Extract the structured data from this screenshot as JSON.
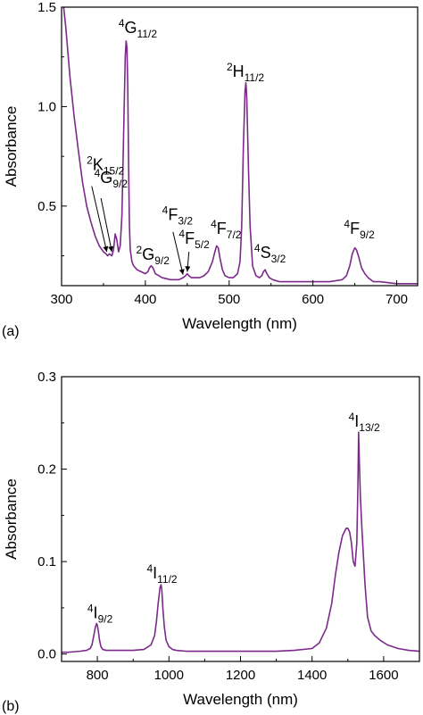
{
  "chart_data": [
    {
      "type": "line",
      "panel_label": "(a)",
      "xlabel": "Wavelength (nm)",
      "ylabel": "Absorbance",
      "xlim": [
        300,
        725
      ],
      "ylim": [
        0.1,
        1.5
      ],
      "xticks": [
        300,
        400,
        500,
        600,
        700
      ],
      "yticks": [
        0.5,
        1.0,
        1.5
      ],
      "ytick_labels": [
        "0.5",
        "1.0",
        "1.5"
      ],
      "grid": false,
      "line_color": "#7b2a8a",
      "series": [
        {
          "x": [
            300,
            305,
            310,
            315,
            320,
            325,
            330,
            335,
            340,
            345,
            350,
            353,
            355,
            357,
            360,
            362,
            364,
            366,
            368,
            370,
            372,
            374,
            376,
            377,
            378,
            379,
            380,
            381,
            382,
            384,
            386,
            390,
            395,
            400,
            403,
            405,
            407,
            409,
            412,
            416,
            420,
            430,
            440,
            445,
            448,
            450,
            452,
            455,
            460,
            465,
            470,
            475,
            480,
            483,
            485,
            487,
            489,
            492,
            495,
            500,
            505,
            510,
            513,
            515,
            517,
            519,
            520,
            521,
            523,
            525,
            528,
            532,
            536,
            539,
            541,
            543,
            545,
            548,
            552,
            560,
            580,
            600,
            620,
            635,
            640,
            644,
            647,
            650,
            652,
            655,
            658,
            662,
            666,
            672,
            680,
            700,
            725
          ],
          "y": [
            1.6,
            1.4,
            1.15,
            0.95,
            0.78,
            0.62,
            0.5,
            0.42,
            0.35,
            0.3,
            0.27,
            0.26,
            0.25,
            0.26,
            0.25,
            0.28,
            0.36,
            0.33,
            0.27,
            0.3,
            0.45,
            0.85,
            1.25,
            1.33,
            1.3,
            1.1,
            0.7,
            0.4,
            0.28,
            0.22,
            0.2,
            0.18,
            0.17,
            0.16,
            0.17,
            0.19,
            0.2,
            0.19,
            0.16,
            0.15,
            0.14,
            0.13,
            0.13,
            0.14,
            0.15,
            0.16,
            0.15,
            0.14,
            0.14,
            0.14,
            0.15,
            0.17,
            0.22,
            0.27,
            0.3,
            0.29,
            0.24,
            0.18,
            0.15,
            0.14,
            0.14,
            0.16,
            0.22,
            0.4,
            0.8,
            1.08,
            1.12,
            1.05,
            0.7,
            0.4,
            0.2,
            0.15,
            0.14,
            0.15,
            0.17,
            0.18,
            0.16,
            0.14,
            0.13,
            0.12,
            0.12,
            0.12,
            0.12,
            0.13,
            0.15,
            0.2,
            0.26,
            0.29,
            0.28,
            0.24,
            0.19,
            0.16,
            0.14,
            0.12,
            0.12,
            0.11,
            0.11
          ]
        }
      ],
      "annotations": [
        {
          "base": "G",
          "sup": "4",
          "sub": "11/2",
          "x": 368,
          "y": 1.37
        },
        {
          "base": "H",
          "sup": "2",
          "sub": "11/2",
          "x": 497,
          "y": 1.15
        },
        {
          "base": "K",
          "sup": "2",
          "sub": "15/2",
          "x": 330,
          "y": 0.68
        },
        {
          "base": "G",
          "sup": "4",
          "sub": "9/2",
          "x": 339,
          "y": 0.615
        },
        {
          "base": "F",
          "sup": "4",
          "sub": "3/2",
          "x": 420,
          "y": 0.43
        },
        {
          "base": "F",
          "sup": "4",
          "sub": "7/2",
          "x": 478,
          "y": 0.36
        },
        {
          "base": "G",
          "sup": "2",
          "sub": "9/2",
          "x": 389,
          "y": 0.23
        },
        {
          "base": "F",
          "sup": "4",
          "sub": "5/2",
          "x": 440,
          "y": 0.31
        },
        {
          "base": "S",
          "sup": "4",
          "sub": "3/2",
          "x": 530,
          "y": 0.24
        },
        {
          "base": "F",
          "sup": "4",
          "sub": "9/2",
          "x": 637,
          "y": 0.36
        }
      ],
      "arrows": [
        {
          "from": [
            336,
            0.6
          ],
          "to": [
            354,
            0.27
          ]
        },
        {
          "from": [
            347,
            0.54
          ],
          "to": [
            360,
            0.27
          ]
        },
        {
          "from": [
            433,
            0.37
          ],
          "to": [
            445,
            0.155
          ]
        },
        {
          "from": [
            452,
            0.27
          ],
          "to": [
            450,
            0.17
          ]
        }
      ]
    },
    {
      "type": "line",
      "panel_label": "(b)",
      "xlabel": "Wavelength (nm)",
      "ylabel": "Absorbance",
      "xlim": [
        700,
        1700
      ],
      "ylim": [
        -0.008,
        0.3
      ],
      "xticks": [
        800,
        1000,
        1200,
        1400,
        1600
      ],
      "yticks": [
        0.0,
        0.1,
        0.2,
        0.3
      ],
      "ytick_labels": [
        "0.0",
        "0.1",
        "0.2",
        "0.3"
      ],
      "grid": false,
      "line_color": "#7b2a8a",
      "series": [
        {
          "x": [
            700,
            720,
            750,
            770,
            780,
            785,
            790,
            795,
            798,
            800,
            803,
            806,
            810,
            815,
            825,
            850,
            900,
            930,
            950,
            960,
            965,
            970,
            975,
            978,
            980,
            983,
            987,
            992,
            1000,
            1010,
            1020,
            1050,
            1100,
            1150,
            1200,
            1250,
            1300,
            1350,
            1400,
            1420,
            1440,
            1455,
            1465,
            1475,
            1485,
            1495,
            1500,
            1505,
            1510,
            1515,
            1520,
            1525,
            1528,
            1530,
            1532,
            1535,
            1540,
            1548,
            1555,
            1565,
            1575,
            1590,
            1610,
            1640,
            1670,
            1700
          ],
          "y": [
            0.002,
            0.002,
            0.003,
            0.004,
            0.006,
            0.01,
            0.02,
            0.03,
            0.033,
            0.031,
            0.024,
            0.015,
            0.008,
            0.005,
            0.004,
            0.004,
            0.004,
            0.005,
            0.01,
            0.02,
            0.035,
            0.055,
            0.072,
            0.075,
            0.07,
            0.05,
            0.03,
            0.015,
            0.008,
            0.005,
            0.004,
            0.003,
            0.003,
            0.003,
            0.003,
            0.003,
            0.003,
            0.004,
            0.006,
            0.012,
            0.028,
            0.055,
            0.085,
            0.11,
            0.128,
            0.136,
            0.136,
            0.132,
            0.12,
            0.1,
            0.095,
            0.12,
            0.18,
            0.24,
            0.21,
            0.17,
            0.13,
            0.075,
            0.04,
            0.025,
            0.02,
            0.015,
            0.01,
            0.006,
            0.004,
            0.003
          ]
        }
      ],
      "annotations": [
        {
          "base": "I",
          "sup": "4",
          "sub": "9/2",
          "x": 772,
          "y": 0.039
        },
        {
          "base": "I",
          "sup": "4",
          "sub": "11/2",
          "x": 938,
          "y": 0.082
        },
        {
          "base": "I",
          "sup": "4",
          "sub": "13/2",
          "x": 1502,
          "y": 0.246
        }
      ],
      "arrows": []
    }
  ]
}
